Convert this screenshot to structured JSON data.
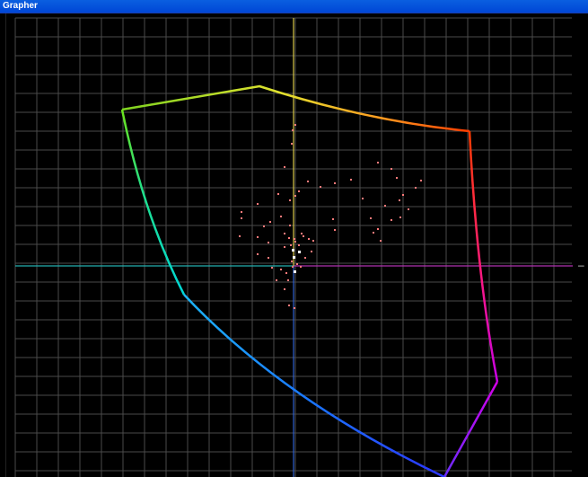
{
  "window": {
    "title": "Grapher"
  },
  "grid": {
    "line_color": "#4a4a4a",
    "background": "#000000"
  },
  "axes": {
    "horizontal_left_color": "#24b0b0",
    "horizontal_right_color": "#b032b0",
    "vertical_top_color": "#d8c84a",
    "vertical_bottom_color": "#2f5fcf",
    "right_marker": "–"
  },
  "gamut": {
    "edge_colors": [
      "#ffff00",
      "#ff7f00",
      "#ff0000",
      "#ff00ff",
      "#7f00ff",
      "#0040ff",
      "#00ffff",
      "#00ff80",
      "#7fff00"
    ]
  },
  "scatter": {
    "color": "#ff7a7a",
    "highlight_color": "#ffffff"
  }
}
